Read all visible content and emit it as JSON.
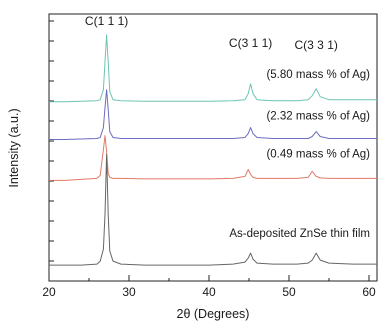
{
  "chart_data": {
    "type": "line",
    "xlabel": "2θ (Degrees)",
    "ylabel": "Intensity (a.u.)",
    "xlim": [
      20,
      61
    ],
    "xticks": [
      20,
      30,
      40,
      50,
      60
    ],
    "yticks_labeled": false,
    "grid": false,
    "legend": "none",
    "x": [
      20,
      22,
      24,
      26,
      26.4,
      26.8,
      27.0,
      27.2,
      27.4,
      27.6,
      28.0,
      29,
      32,
      36,
      40,
      43,
      44.5,
      44.9,
      45.2,
      45.5,
      46,
      48,
      51,
      52.4,
      52.9,
      53.4,
      53.9,
      55,
      58,
      61
    ],
    "series": [
      {
        "name": "",
        "color": "#6fc4b3",
        "values": [
          68,
          68,
          68.5,
          69,
          70,
          80,
          108,
          135,
          108,
          78,
          70,
          69,
          68.5,
          68.5,
          68.5,
          69,
          70,
          76,
          86,
          76,
          70,
          69,
          69,
          70,
          74,
          81,
          73,
          70,
          70,
          70
        ]
      },
      {
        "name": "",
        "color": "#6c6cc0",
        "values": [
          30,
          30,
          30.5,
          31,
          32,
          42,
          62,
          80,
          60,
          38,
          32,
          31,
          31,
          31,
          31,
          31,
          32,
          36,
          42,
          36,
          32,
          31,
          31,
          31,
          33,
          38,
          33,
          31,
          31,
          31
        ]
      },
      {
        "name": "",
        "color": "#e07a66",
        "values": [
          -11,
          -11,
          -10,
          -9,
          -6,
          20,
          34,
          18,
          -4,
          -8,
          -9,
          -9,
          -9.5,
          -9.5,
          -9.5,
          -9,
          -7,
          0,
          -5,
          -8,
          -9,
          -9,
          -9,
          -8,
          -2,
          -7,
          -8.5,
          -9,
          -9,
          -9
        ]
      },
      {
        "name": "",
        "color": "#666666",
        "values": [
          -96,
          -96,
          -96,
          -95,
          -92,
          -80,
          -45,
          15,
          -45,
          -82,
          -92,
          -95,
          -96,
          -96,
          -96,
          -95,
          -93,
          -89,
          -84,
          -90,
          -94,
          -95,
          -95,
          -94,
          -91,
          -84,
          -91,
          -94,
          -95,
          -95
        ]
      }
    ],
    "annotations": [
      {
        "text": "(5.80 mass % of Ag)"
      },
      {
        "text": "(2.32 mass % of Ag)"
      },
      {
        "text": "(0.49 mass % of Ag)"
      },
      {
        "text": "As-deposited ZnSe thin film"
      }
    ],
    "peak_labels": [
      {
        "text": "C(1 1 1)",
        "x": 27.2
      },
      {
        "text": "C(3 1 1)",
        "x": 45.2
      },
      {
        "text": "C(3 3 1)",
        "x": 53.4
      }
    ]
  }
}
